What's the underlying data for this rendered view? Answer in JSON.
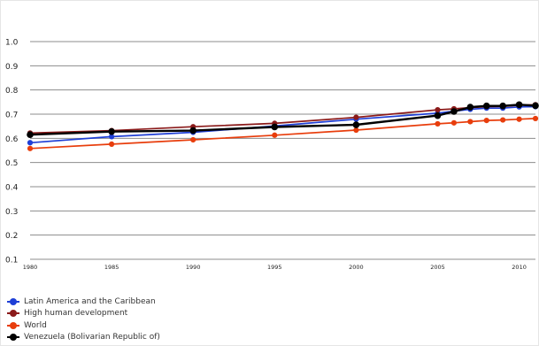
{
  "chart_data": {
    "type": "line",
    "title": "",
    "xlabel": "",
    "ylabel": "",
    "x": [
      1980,
      1985,
      1990,
      1995,
      2000,
      2005,
      2006,
      2007,
      2008,
      2009,
      2010,
      2011
    ],
    "x_ticks": [
      "1980",
      "1985",
      "1990",
      "1995",
      "2000",
      "2005",
      "2010"
    ],
    "y_ticks": [
      "0.1",
      "0.2",
      "0.3",
      "0.4",
      "0.5",
      "0.6",
      "0.7",
      "0.8",
      "0.9",
      "1.0"
    ],
    "xlim": [
      1980,
      2011
    ],
    "ylim": [
      0.1,
      1.0
    ],
    "grid": "horizontal",
    "legend_position": "bottom-left",
    "series": [
      {
        "name": "Latin America and the Caribbean",
        "color": "#1f3fd6",
        "values": [
          0.582,
          0.607,
          0.625,
          0.651,
          0.679,
          0.704,
          0.712,
          0.72,
          0.725,
          0.725,
          0.73,
          0.731
        ]
      },
      {
        "name": "High human development",
        "color": "#8b1a1a",
        "values": [
          0.622,
          0.632,
          0.648,
          0.662,
          0.687,
          0.718,
          0.722,
          0.727,
          0.731,
          0.732,
          0.737,
          0.739
        ]
      },
      {
        "name": "World",
        "color": "#e83d0c",
        "values": [
          0.558,
          0.576,
          0.594,
          0.613,
          0.634,
          0.66,
          0.664,
          0.669,
          0.674,
          0.676,
          0.679,
          0.682
        ]
      },
      {
        "name": "Venezuela (Bolivarian Republic of)",
        "color": "#000000",
        "values": [
          0.615,
          0.628,
          0.632,
          0.647,
          0.656,
          0.694,
          0.711,
          0.729,
          0.734,
          0.734,
          0.739,
          0.735
        ]
      }
    ]
  }
}
